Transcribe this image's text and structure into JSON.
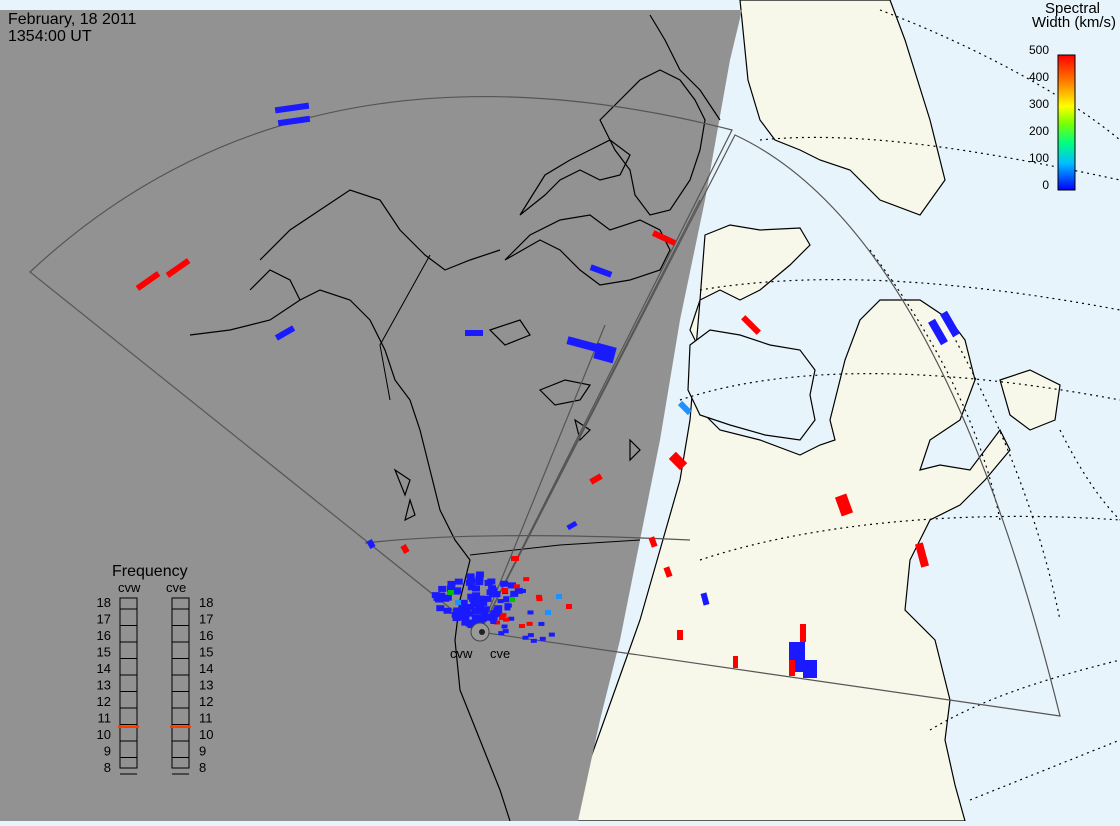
{
  "header": {
    "date": "February, 18 2011",
    "time": "1354:00 UT"
  },
  "colorbar": {
    "title_line1": "Spectral",
    "title_line2": "Width (km/s)",
    "ticks": [
      "500",
      "400",
      "300",
      "200",
      "100",
      "0"
    ],
    "colors": [
      "#0000ff",
      "#00bfff",
      "#00ff7f",
      "#7fff00",
      "#ffff00",
      "#ff7f00",
      "#ff0000"
    ]
  },
  "frequency": {
    "title": "Frequency",
    "radars": [
      "cvw",
      "cve"
    ],
    "levels": [
      "18",
      "17",
      "16",
      "15",
      "14",
      "13",
      "12",
      "11",
      "10",
      "9",
      "8"
    ],
    "current_mhz": [
      10.5,
      10.5
    ]
  },
  "radar_labels": [
    "cvw",
    "cve"
  ],
  "colors": {
    "night": "#929292",
    "land_day": "#f8f8ea",
    "ocean_day": "#e8f4fb",
    "echo_low": "#1a1aff",
    "echo_high": "#ff0000",
    "echo_mid": "#1e90ff",
    "echo_green": "#00c000"
  }
}
